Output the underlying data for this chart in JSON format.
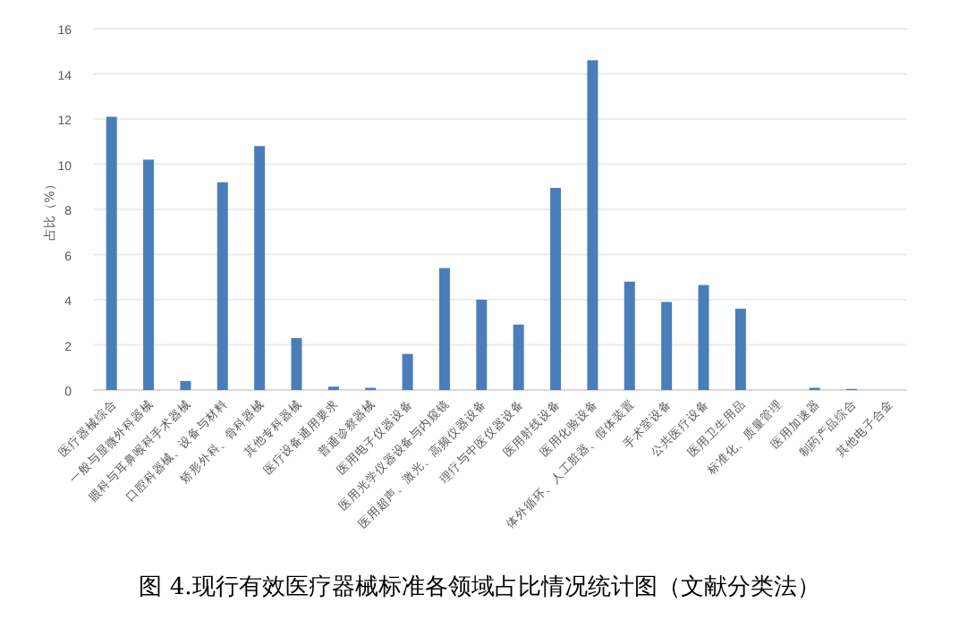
{
  "chart_data": {
    "type": "bar",
    "title": "图 4.现行有效医疗器械标准各领域占比情况统计图（文献分类法）",
    "ylabel": "占比（%）",
    "categories": [
      "医疗器械综合",
      "一般与显微外科器械",
      "眼科与耳鼻喉科手术器械",
      "口腔科器械、设备与材料",
      "矫形外科、骨科器械",
      "其他专科器械",
      "医疗设备通用要求",
      "普通诊察器械",
      "医用电子仪器设备",
      "医用光学仪器设备与内窥镜",
      "医用超声、激光、高频仪器设备",
      "理疗与中医仪器设备",
      "医用射线设备",
      "医用化验设备",
      "体外循环、人工脏器、假体装置",
      "手术室设备",
      "公共医疗设备",
      "医用卫生用品",
      "标准化、质量管理",
      "医用加速器",
      "制药产品综合",
      "其他电子合金"
    ],
    "values": [
      12.1,
      10.2,
      0.4,
      9.2,
      10.8,
      2.3,
      0.15,
      0.1,
      1.6,
      5.4,
      4.0,
      2.9,
      8.95,
      14.6,
      4.8,
      3.9,
      4.65,
      3.6,
      0,
      0.1,
      0.05,
      0
    ],
    "color": "#4a7ebb",
    "ylim": [
      0,
      16
    ],
    "yticks": [
      0,
      2,
      4,
      6,
      8,
      10,
      12,
      14,
      16
    ],
    "grid": "y"
  }
}
